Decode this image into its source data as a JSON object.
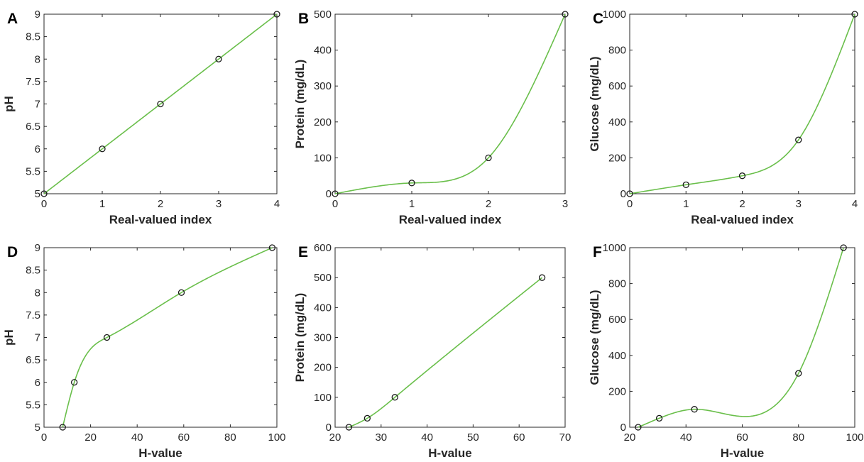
{
  "colors": {
    "curve": "#6abf4b",
    "marker": "#1a1a1a",
    "axes": "#262626"
  },
  "chart_data": [
    {
      "panel": "A",
      "type": "line",
      "xlabel": "Real-valued index",
      "ylabel": "pH",
      "xlim": [
        0,
        4
      ],
      "ylim": [
        5,
        9
      ],
      "xticks": [
        "0",
        "1",
        "2",
        "3",
        "4"
      ],
      "yticks": [
        "5",
        "5.5",
        "6",
        "6.5",
        "7",
        "7.5",
        "8",
        "8.5",
        "9"
      ],
      "x": [
        0,
        1,
        2,
        3,
        4
      ],
      "y": [
        5,
        6,
        7,
        8,
        9
      ]
    },
    {
      "panel": "B",
      "type": "line",
      "xlabel": "Real-valued index",
      "ylabel": "Protein (mg/dL)",
      "xlim": [
        0,
        3
      ],
      "ylim": [
        0,
        500
      ],
      "xticks": [
        "0",
        "1",
        "2",
        "3"
      ],
      "yticks": [
        "0",
        "100",
        "200",
        "300",
        "400",
        "500"
      ],
      "x": [
        0,
        1,
        2,
        3
      ],
      "y": [
        0,
        30,
        100,
        500
      ]
    },
    {
      "panel": "C",
      "type": "line",
      "xlabel": "Real-valued index",
      "ylabel": "Glucose (mg/dL)",
      "xlim": [
        0,
        4
      ],
      "ylim": [
        0,
        1000
      ],
      "xticks": [
        "0",
        "1",
        "2",
        "3",
        "4"
      ],
      "yticks": [
        "0",
        "200",
        "400",
        "600",
        "800",
        "1000"
      ],
      "x": [
        0,
        1,
        2,
        3,
        4
      ],
      "y": [
        0,
        50,
        100,
        300,
        1000
      ]
    },
    {
      "panel": "D",
      "type": "line",
      "xlabel": "H-value",
      "ylabel": "pH",
      "xlim": [
        0,
        100
      ],
      "ylim": [
        5,
        9
      ],
      "xticks": [
        "0",
        "20",
        "40",
        "60",
        "80",
        "100"
      ],
      "yticks": [
        "5",
        "5.5",
        "6",
        "6.5",
        "7",
        "7.5",
        "8",
        "8.5",
        "9"
      ],
      "x": [
        8,
        13,
        27,
        59,
        98
      ],
      "y": [
        5,
        6,
        7,
        8,
        9
      ]
    },
    {
      "panel": "E",
      "type": "line",
      "xlabel": "H-value",
      "ylabel": "Protein (mg/dL)",
      "xlim": [
        20,
        70
      ],
      "ylim": [
        0,
        600
      ],
      "xticks": [
        "20",
        "30",
        "40",
        "50",
        "60",
        "70"
      ],
      "yticks": [
        "0",
        "100",
        "200",
        "300",
        "400",
        "500",
        "600"
      ],
      "x": [
        23,
        27,
        33,
        65
      ],
      "y": [
        0,
        30,
        100,
        500
      ]
    },
    {
      "panel": "F",
      "type": "line",
      "xlabel": "H-value",
      "ylabel": "Glucose (mg/dL)",
      "xlim": [
        20,
        100
      ],
      "ylim": [
        0,
        1000
      ],
      "xticks": [
        "20",
        "40",
        "60",
        "80",
        "100"
      ],
      "yticks": [
        "0",
        "200",
        "400",
        "600",
        "800",
        "1000"
      ],
      "x": [
        23,
        30.5,
        43,
        80,
        96
      ],
      "y": [
        0,
        50,
        100,
        300,
        1000
      ]
    }
  ]
}
